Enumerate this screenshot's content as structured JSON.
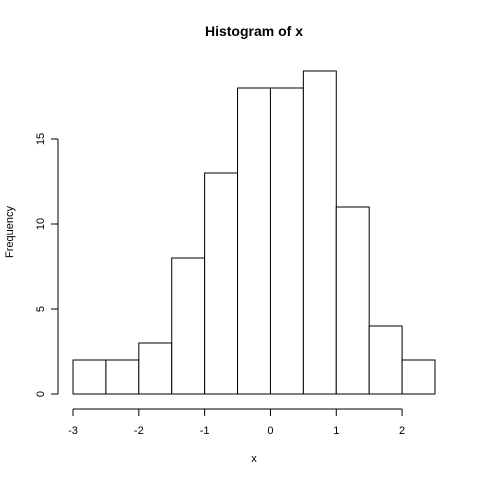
{
  "chart_data": {
    "type": "bar",
    "title": "Histogram of x",
    "xlabel": "x",
    "ylabel": "Frequency",
    "bins": [
      {
        "start": -3.0,
        "end": -2.5,
        "count": 2
      },
      {
        "start": -2.5,
        "end": -2.0,
        "count": 2
      },
      {
        "start": -2.0,
        "end": -1.5,
        "count": 3
      },
      {
        "start": -1.5,
        "end": -1.0,
        "count": 8
      },
      {
        "start": -1.0,
        "end": -0.5,
        "count": 13
      },
      {
        "start": -0.5,
        "end": 0.0,
        "count": 18
      },
      {
        "start": 0.0,
        "end": 0.5,
        "count": 18
      },
      {
        "start": 0.5,
        "end": 1.0,
        "count": 19
      },
      {
        "start": 1.0,
        "end": 1.5,
        "count": 11
      },
      {
        "start": 1.5,
        "end": 2.0,
        "count": 4
      },
      {
        "start": 2.0,
        "end": 2.5,
        "count": 2
      }
    ],
    "xticks": [
      -3,
      -2,
      -1,
      0,
      1,
      2
    ],
    "xtick_labels": [
      "-3",
      "-2",
      "-1",
      "0",
      "1",
      "2"
    ],
    "yticks": [
      0,
      5,
      10,
      15
    ],
    "ytick_labels": [
      "0",
      "5",
      "10",
      "15"
    ],
    "xlim": [
      -3.0,
      2.5
    ],
    "ylim": [
      0,
      19
    ],
    "grid": false,
    "bar_fill": "#ffffff",
    "bar_stroke": "#000000"
  }
}
